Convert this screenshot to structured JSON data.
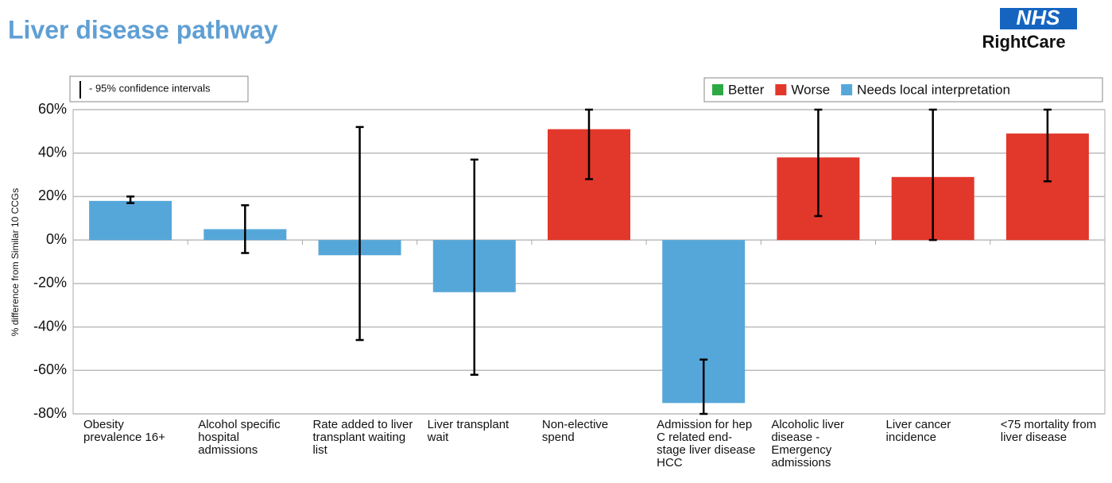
{
  "chart_data": {
    "type": "bar",
    "title": "Liver disease pathway",
    "logo": {
      "mark": "NHS",
      "name": "RightCare"
    },
    "ci_note": "- 95% confidence intervals",
    "ylabel": "% difference from Similar 10 CCGs",
    "legend": [
      {
        "name": "Better",
        "color": "#2ca845"
      },
      {
        "name": "Worse",
        "color": "#e2372b"
      },
      {
        "name": "Needs local interpretation",
        "color": "#56a7d9"
      }
    ],
    "categories": [
      "Obesity prevalence 16+",
      "Alcohol specific hospital admissions",
      "Rate added to liver transplant waiting list",
      "Liver transplant wait",
      "Non-elective spend",
      "Admission for hep C related end-stage liver disease HCC",
      "Alcoholic liver disease - Emergency admissions",
      "Liver cancer incidence",
      "<75 mortality from liver disease"
    ],
    "values": [
      18,
      5,
      -7,
      -24,
      51,
      -75,
      38,
      29,
      49
    ],
    "ci_low": [
      17,
      -6,
      -46,
      -62,
      28,
      -80,
      11,
      0,
      27
    ],
    "ci_high": [
      20,
      16,
      52,
      37,
      60,
      -55,
      60,
      60,
      60
    ],
    "colors": [
      "#56a7d9",
      "#56a7d9",
      "#56a7d9",
      "#56a7d9",
      "#e2372b",
      "#56a7d9",
      "#e2372b",
      "#e2372b",
      "#e2372b"
    ],
    "ylim": [
      -80,
      60
    ],
    "yticks": [
      {
        "value": -80,
        "label": "-80%"
      },
      {
        "value": -60,
        "label": "-60%"
      },
      {
        "value": -40,
        "label": "-40%"
      },
      {
        "value": -20,
        "label": "-20%"
      },
      {
        "value": 0,
        "label": "0%"
      },
      {
        "value": 20,
        "label": "20%"
      },
      {
        "value": 40,
        "label": "40%"
      },
      {
        "value": 60,
        "label": "60%"
      }
    ],
    "grid": true
  }
}
